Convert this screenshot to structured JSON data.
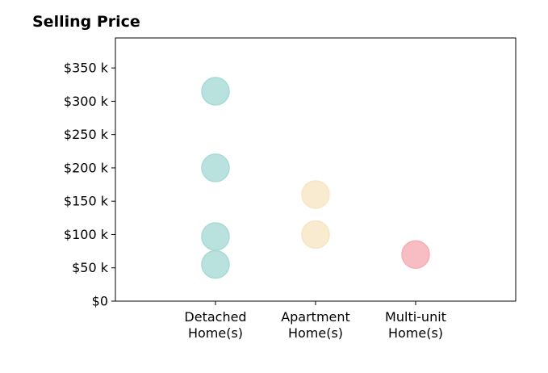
{
  "chart_data": {
    "type": "scatter",
    "title": "Selling Price",
    "xlabel": "",
    "ylabel": "",
    "categories": [
      [
        "Detached",
        "Home(s)"
      ],
      [
        "Apartment",
        "Home(s)"
      ],
      [
        "Multi-unit",
        "Home(s)"
      ]
    ],
    "yticks": [
      0,
      50,
      100,
      150,
      200,
      250,
      300,
      350
    ],
    "ytick_labels": [
      "$0",
      "$50 k",
      "$100 k",
      "$150 k",
      "$200 k",
      "$250 k",
      "$300 k",
      "$350 k"
    ],
    "ylim": [
      0,
      395
    ],
    "xlim": [
      -1,
      3
    ],
    "grid": false,
    "points": [
      {
        "category": 0,
        "value": 315,
        "color": "#a8dad4"
      },
      {
        "category": 0,
        "value": 200,
        "color": "#a8dad4"
      },
      {
        "category": 0,
        "value": 97,
        "color": "#a8dad4"
      },
      {
        "category": 0,
        "value": 55,
        "color": "#a8dad4"
      },
      {
        "category": 1,
        "value": 160,
        "color": "#f7e6c4"
      },
      {
        "category": 1,
        "value": 100,
        "color": "#f7e6c4"
      },
      {
        "category": 2,
        "value": 70,
        "color": "#f5adb3"
      }
    ]
  }
}
